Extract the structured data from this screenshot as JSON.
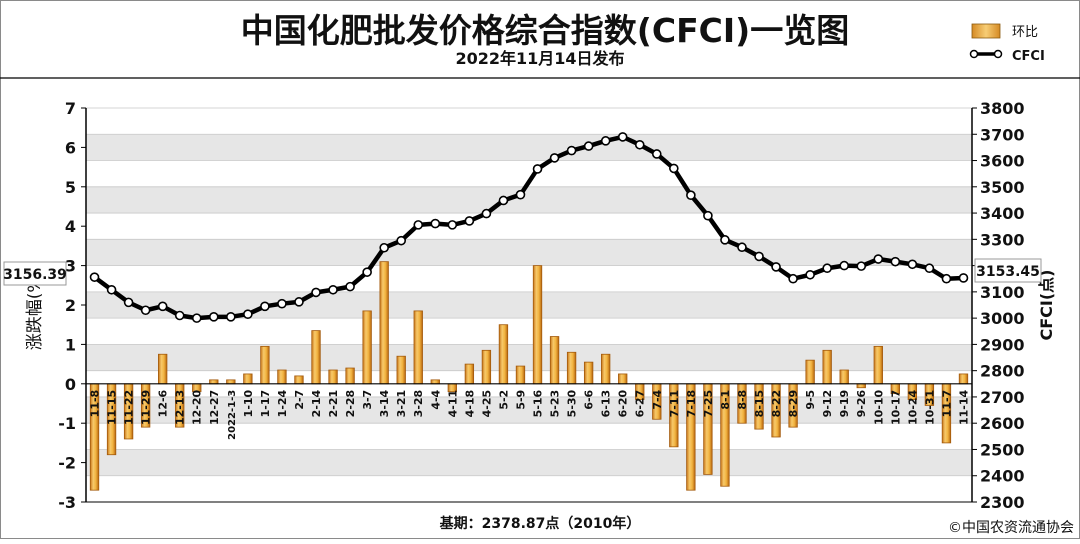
{
  "chart_data": {
    "type": "bar+line",
    "title": "中国化肥批发价格综合指数(CFCI)一览图",
    "subtitle": "2022年11月14日发布",
    "ylabel_left": "涨跌幅(%)",
    "ylabel_right": "CFCI(点)",
    "ylim_left": [
      -3,
      7
    ],
    "ylim_right": [
      2300,
      3800
    ],
    "yticks_left": [
      "7",
      "6",
      "5",
      "4",
      "3",
      "2",
      "1",
      "0",
      "-1",
      "-2",
      "-3"
    ],
    "yticks_right": [
      "3800",
      "3700",
      "3600",
      "3500",
      "3400",
      "3300",
      "3200",
      "3100",
      "3000",
      "2900",
      "2800",
      "2700",
      "2600",
      "2500",
      "2400",
      "2300"
    ],
    "grid": true,
    "legend_position": "top-right",
    "legend": [
      {
        "name": "环比",
        "type": "bar",
        "color": "#e8a020"
      },
      {
        "name": "CFCI",
        "type": "line",
        "color": "#000000"
      }
    ],
    "categories": [
      "11-8",
      "11-15",
      "11-22",
      "11-29",
      "12-6",
      "12-13",
      "12-20",
      "12-27",
      "2022-1-3",
      "1-10",
      "1-17",
      "1-24",
      "2-7",
      "2-14",
      "2-21",
      "2-28",
      "3-7",
      "3-14",
      "3-21",
      "3-28",
      "4-4",
      "4-11",
      "4-18",
      "4-25",
      "5-2",
      "5-9",
      "5-16",
      "5-23",
      "5-30",
      "6-6",
      "6-13",
      "6-20",
      "6-27",
      "7-4",
      "7-11",
      "7-18",
      "7-25",
      "8-1",
      "8-8",
      "8-15",
      "8-22",
      "8-29",
      "9-5",
      "9-12",
      "9-19",
      "9-26",
      "10-10",
      "10-17",
      "10-24",
      "10-31",
      "11-7",
      "11-14"
    ],
    "series": [
      {
        "name": "环比",
        "type": "bar",
        "axis": "left",
        "values": [
          -2.7,
          -1.8,
          -1.4,
          -1.1,
          0.75,
          -1.1,
          -0.2,
          0.1,
          0.1,
          0.25,
          0.95,
          0.35,
          0.2,
          1.35,
          0.35,
          0.4,
          1.85,
          3.1,
          0.7,
          1.85,
          0.1,
          -0.2,
          0.5,
          0.85,
          1.5,
          0.45,
          3.0,
          1.2,
          0.8,
          0.55,
          0.75,
          0.25,
          -0.4,
          -0.9,
          -1.6,
          -2.7,
          -2.3,
          -2.6,
          -1.0,
          -1.15,
          -1.35,
          -1.1,
          0.6,
          0.85,
          0.35,
          -0.1,
          0.95,
          -0.25,
          -0.4,
          -0.55,
          -1.5,
          0.25
        ]
      },
      {
        "name": "CFCI",
        "type": "line",
        "axis": "right",
        "values": [
          3156,
          3108,
          3060,
          3030,
          3045,
          3010,
          3000,
          3005,
          3005,
          3015,
          3045,
          3055,
          3062,
          3098,
          3108,
          3120,
          3175,
          3268,
          3295,
          3355,
          3360,
          3355,
          3370,
          3398,
          3448,
          3470,
          3568,
          3610,
          3638,
          3655,
          3675,
          3690,
          3660,
          3625,
          3570,
          3468,
          3390,
          3298,
          3270,
          3235,
          3195,
          3150,
          3165,
          3190,
          3200,
          3198,
          3225,
          3215,
          3205,
          3190,
          3150,
          3153
        ]
      }
    ],
    "annotations": {
      "start_value": "3156.39",
      "end_value": "3153.45",
      "base_period": "基期：2378.87点（2010年）",
      "copyright": "©中国农资流通协会"
    }
  }
}
